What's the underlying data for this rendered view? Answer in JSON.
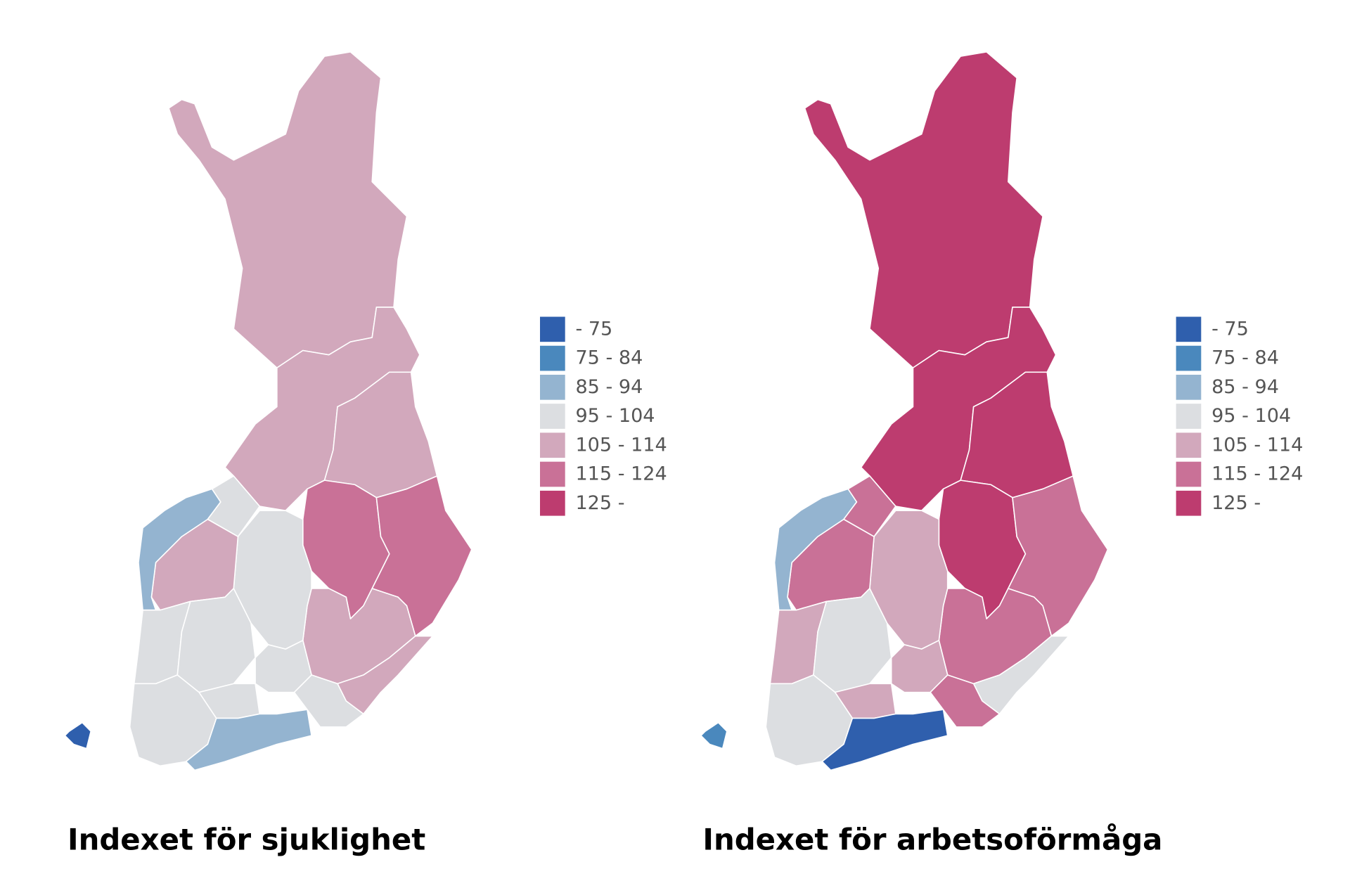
{
  "maps": [
    {
      "title": "Indexet för sjuklighet",
      "legend": [
        {
          "label": "- 75",
          "color": "#2f5fad"
        },
        {
          "label": "75 - 84",
          "color": "#4a88bd"
        },
        {
          "label": "85 - 94",
          "color": "#94b4d0"
        },
        {
          "label": "95 - 104",
          "color": "#dcdee1"
        },
        {
          "label": "105 - 114",
          "color": "#d2a8bc"
        },
        {
          "label": "115 - 124",
          "color": "#c97197"
        },
        {
          "label": "125 -",
          "color": "#bd3c6f"
        }
      ]
    },
    {
      "title": "Indexet för arbetsoförmåga",
      "legend": [
        {
          "label": "- 75",
          "color": "#2f5fad"
        },
        {
          "label": "75 - 84",
          "color": "#4a88bd"
        },
        {
          "label": "85 - 94",
          "color": "#94b4d0"
        },
        {
          "label": "95 - 104",
          "color": "#dcdee1"
        },
        {
          "label": "105 - 114",
          "color": "#d2a8bc"
        },
        {
          "label": "115 - 124",
          "color": "#c97197"
        },
        {
          "label": "125 -",
          "color": "#bd3c6f"
        }
      ]
    }
  ]
}
